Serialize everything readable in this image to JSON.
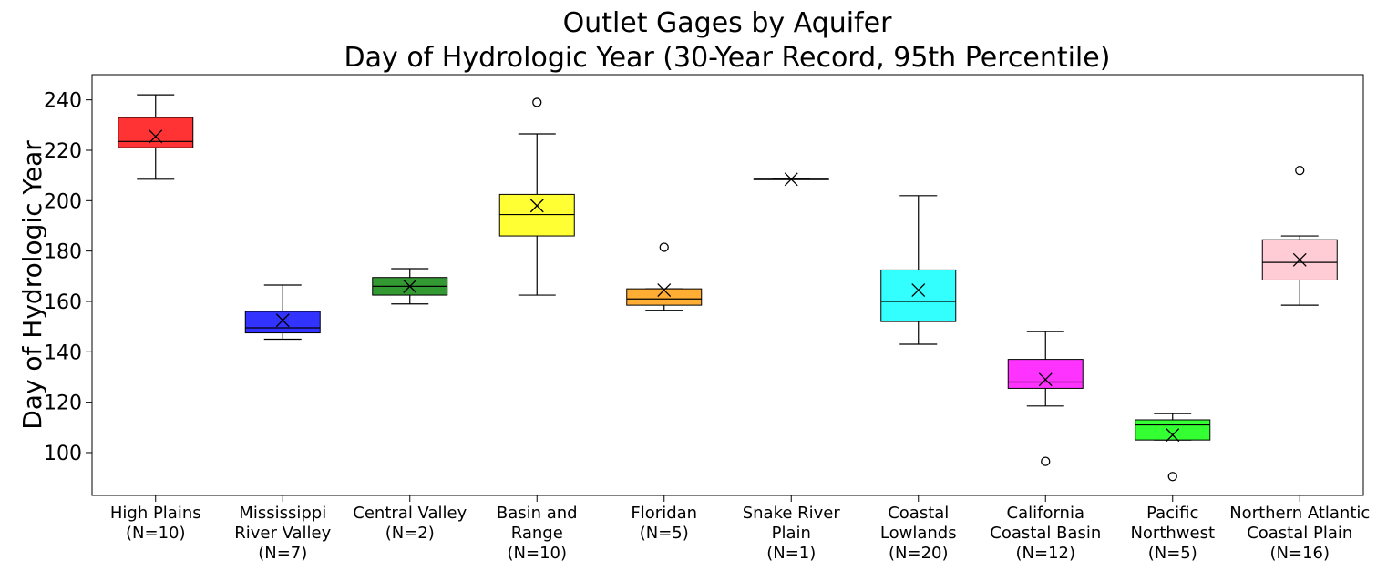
{
  "chart_data": {
    "type": "box",
    "title_lines": [
      "Outlet Gages by Aquifer",
      "Day of Hydrologic Year (30-Year Record, 95th Percentile)"
    ],
    "xlabel": "",
    "ylabel": "Day of Hydrologic Year",
    "ylim": [
      83,
      250
    ],
    "yticks": [
      100,
      120,
      140,
      160,
      180,
      200,
      220,
      240
    ],
    "grid": false,
    "legend": "none",
    "mean_marker": "x",
    "boxes": [
      {
        "label_lines": [
          "High Plains",
          "(N=10)"
        ],
        "color": "#ff3333",
        "whisker_low": 208.5,
        "q1": 221,
        "median": 223.5,
        "q3": 233,
        "whisker_high": 242,
        "mean": 225.5,
        "outliers": []
      },
      {
        "label_lines": [
          "Mississippi",
          "River Valley",
          "(N=7)"
        ],
        "color": "#3333ff",
        "whisker_low": 145,
        "q1": 147.5,
        "median": 149.5,
        "q3": 156,
        "whisker_high": 166.5,
        "mean": 152.5,
        "outliers": []
      },
      {
        "label_lines": [
          "Central Valley",
          "(N=2)"
        ],
        "color": "#339933",
        "whisker_low": 159,
        "q1": 162.5,
        "median": 166,
        "q3": 169.5,
        "whisker_high": 173,
        "mean": 166,
        "outliers": []
      },
      {
        "label_lines": [
          "Basin and",
          "Range",
          "(N=10)"
        ],
        "color": "#ffff33",
        "whisker_low": 162.5,
        "q1": 186,
        "median": 194.5,
        "q3": 202.5,
        "whisker_high": 226.5,
        "mean": 198,
        "outliers": [
          239
        ]
      },
      {
        "label_lines": [
          "Floridan",
          "(N=5)"
        ],
        "color": "#ffad33",
        "whisker_low": 156.5,
        "q1": 158.5,
        "median": 161,
        "q3": 165,
        "whisker_high": 165,
        "mean": 164.5,
        "outliers": [
          181.5
        ]
      },
      {
        "label_lines": [
          "Snake River",
          "Plain",
          "(N=1)"
        ],
        "color": "#b3b3b3",
        "whisker_low": 208.5,
        "q1": 208.5,
        "median": 208.5,
        "q3": 208.5,
        "whisker_high": 208.5,
        "mean": 208.5,
        "outliers": []
      },
      {
        "label_lines": [
          "Coastal",
          "Lowlands",
          "(N=20)"
        ],
        "color": "#33ffff",
        "whisker_low": 143,
        "q1": 152,
        "median": 160,
        "q3": 172.5,
        "whisker_high": 202,
        "mean": 164.5,
        "outliers": []
      },
      {
        "label_lines": [
          "California",
          "Coastal Basin",
          "(N=12)"
        ],
        "color": "#ff33ff",
        "whisker_low": 118.5,
        "q1": 125.5,
        "median": 128,
        "q3": 137,
        "whisker_high": 148,
        "mean": 129,
        "outliers": [
          96.5
        ]
      },
      {
        "label_lines": [
          "Pacific",
          "Northwest",
          "(N=5)"
        ],
        "color": "#33ff33",
        "whisker_low": 105,
        "q1": 105,
        "median": 111,
        "q3": 113,
        "whisker_high": 115.5,
        "mean": 107,
        "outliers": [
          90.5
        ]
      },
      {
        "label_lines": [
          "Northern Atlantic",
          "Coastal Plain",
          "(N=16)"
        ],
        "color": "#ffccd5",
        "whisker_low": 158.5,
        "q1": 168.5,
        "median": 175.5,
        "q3": 184.5,
        "whisker_high": 186,
        "mean": 176.5,
        "outliers": [
          212
        ]
      }
    ]
  }
}
